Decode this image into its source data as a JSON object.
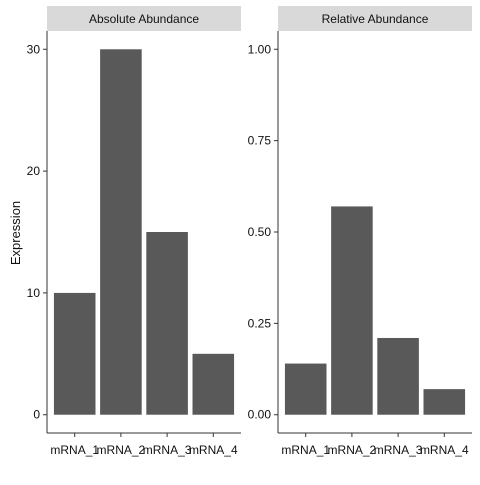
{
  "colors": {
    "bar": "#595959",
    "strip": "#d9d9d9",
    "axis": "#333333",
    "text": "#111111"
  },
  "ylabel": "Expression",
  "chart_data": [
    {
      "type": "bar",
      "title": "Absolute Abundance",
      "categories": [
        "mRNA_1",
        "mRNA_2",
        "mRNA_3",
        "mRNA_4"
      ],
      "values": [
        10,
        30,
        15,
        5
      ],
      "ylim": [
        -1.5,
        31.5
      ],
      "yticks": [
        "0",
        "10",
        "20",
        "30"
      ],
      "ytick_values": [
        0,
        10,
        20,
        30
      ],
      "grid": false
    },
    {
      "type": "bar",
      "title": "Relative Abundance",
      "categories": [
        "mRNA_1",
        "mRNA_2",
        "mRNA_3",
        "mRNA_4"
      ],
      "values": [
        0.14,
        0.57,
        0.21,
        0.07
      ],
      "ylim": [
        -0.05,
        1.05
      ],
      "yticks": [
        "0.00",
        "0.25",
        "0.50",
        "0.75",
        "1.00"
      ],
      "ytick_values": [
        0,
        0.25,
        0.5,
        0.75,
        1.0
      ],
      "grid": false
    }
  ]
}
